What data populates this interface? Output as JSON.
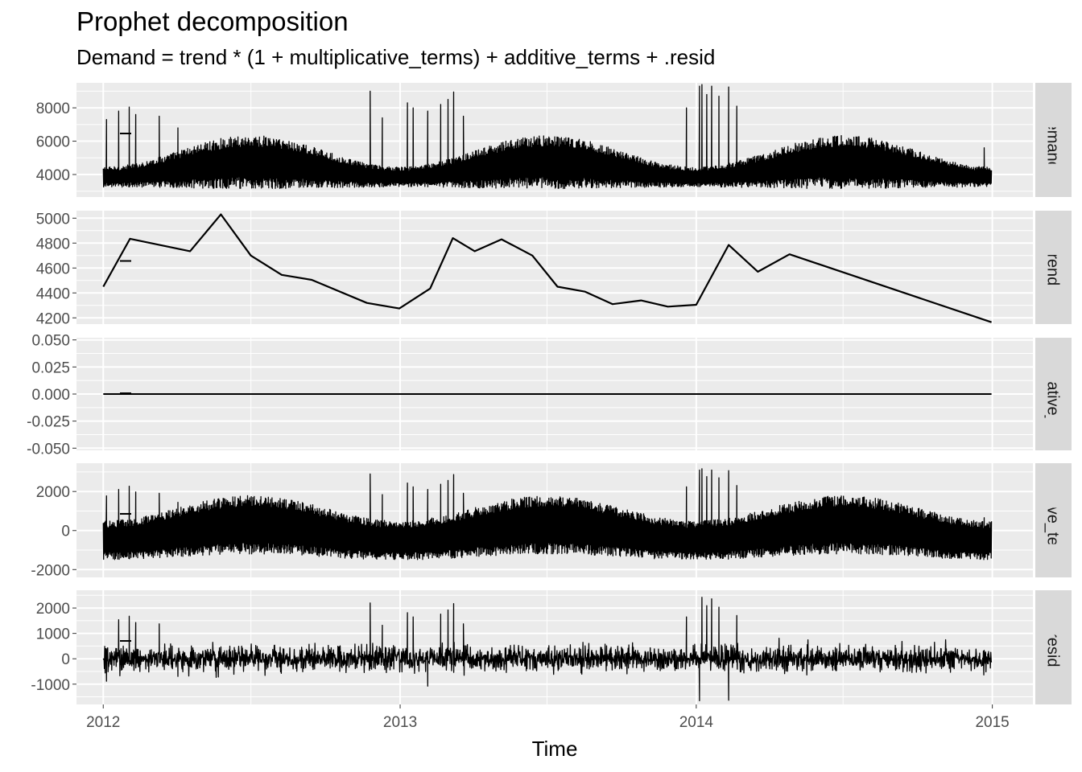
{
  "chart_data": {
    "type": "line",
    "title": "Prophet decomposition",
    "subtitle": "Demand = trend * (1 + multiplicative_terms) + additive_terms + .resid",
    "xlabel": "Time",
    "x_ticks": [
      "2012",
      "2013",
      "2014",
      "2015"
    ],
    "xlim": [
      "2011-11-29",
      "2015-02-20"
    ],
    "data_range": [
      "2012-01-01",
      "2014-12-31"
    ],
    "grid": true,
    "legend": "none",
    "colors": {
      "panel_bg": "#ebebeb",
      "grid": "#ffffff",
      "strip_bg": "#d9d9d9",
      "line": "#000000"
    },
    "panels": [
      {
        "name": "Demand",
        "ylim": [
          2650,
          9500
        ],
        "y_ticks": [
          4000,
          6000,
          8000
        ],
        "tick_labels": [
          "4000",
          "6000",
          "8000"
        ],
        "description": "Half-hourly electricity demand, roughly 3000-7000 with spikes up to about 9300",
        "approx_envelope": {
          "base_min": 3300,
          "seasonal_peak_max": 6900,
          "spike_max": 9300
        }
      },
      {
        "name": "trend",
        "ylim": [
          4150,
          5060
        ],
        "y_ticks": [
          4200,
          4400,
          4600,
          4800,
          5000
        ],
        "tick_labels": [
          "4200",
          "4400",
          "4600",
          "4800",
          "5000"
        ],
        "points": [
          [
            "2012-01-01",
            4450
          ],
          [
            "2012-02-03",
            4835
          ],
          [
            "2012-04-17",
            4735
          ],
          [
            "2012-05-25",
            5030
          ],
          [
            "2012-07-01",
            4700
          ],
          [
            "2012-08-08",
            4545
          ],
          [
            "2012-09-14",
            4505
          ],
          [
            "2012-11-21",
            4320
          ],
          [
            "2012-12-31",
            4275
          ],
          [
            "2013-02-07",
            4435
          ],
          [
            "2013-03-07",
            4840
          ],
          [
            "2013-04-03",
            4735
          ],
          [
            "2013-05-06",
            4830
          ],
          [
            "2013-06-13",
            4700
          ],
          [
            "2013-07-14",
            4450
          ],
          [
            "2013-08-17",
            4410
          ],
          [
            "2013-09-20",
            4310
          ],
          [
            "2013-10-25",
            4340
          ],
          [
            "2013-11-27",
            4290
          ],
          [
            "2014-01-01",
            4305
          ],
          [
            "2014-02-10",
            4785
          ],
          [
            "2014-03-18",
            4570
          ],
          [
            "2014-04-26",
            4710
          ],
          [
            "2014-12-31",
            4165
          ]
        ]
      },
      {
        "name": "multiplicative_terms",
        "ylim": [
          -0.052,
          0.052
        ],
        "y_ticks": [
          -0.05,
          -0.025,
          0,
          0.025,
          0.05
        ],
        "tick_labels": [
          "-0.050",
          "-0.025",
          "0.000",
          "0.025",
          "0.050"
        ],
        "constant_value": 0
      },
      {
        "name": "additive_terms",
        "ylim": [
          -2400,
          3450
        ],
        "y_ticks": [
          -2000,
          0,
          2000
        ],
        "tick_labels": [
          "-2000",
          "0",
          "2000"
        ],
        "description": "Seasonal component oscillating roughly between -2200 and 3200"
      },
      {
        "name": ".resid",
        "ylim": [
          -1800,
          2700
        ],
        "y_ticks": [
          -1000,
          0,
          1000,
          2000
        ],
        "tick_labels": [
          "-1000",
          "0",
          "1000",
          "2000"
        ],
        "description": "Residuals mostly within +/-1000, with spikes to about 2500 and -1700"
      }
    ]
  }
}
